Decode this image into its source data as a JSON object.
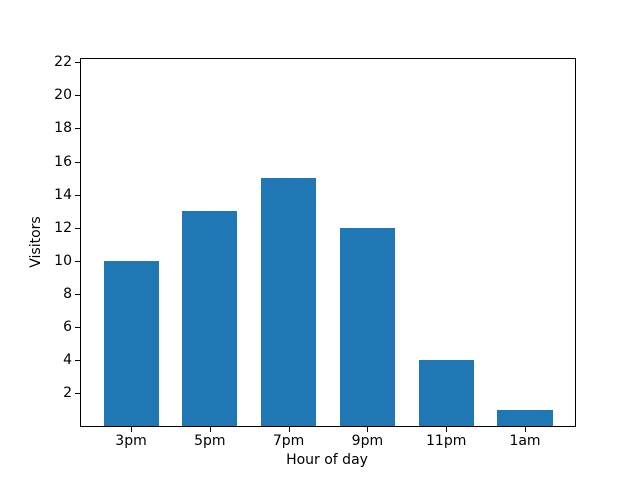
{
  "figure": {
    "background": "#ffffff",
    "spine_color": "#000000",
    "text_color": "#000000"
  },
  "chart_data": {
    "type": "bar",
    "title": "",
    "xlabel": "Hour of day",
    "ylabel": "Visitors",
    "categories": [
      "3pm",
      "5pm",
      "7pm",
      "9pm",
      "11pm",
      "1am"
    ],
    "values": [
      10,
      13,
      15,
      12,
      4,
      1
    ],
    "bar_color": "#1f77b4",
    "bar_width": 0.7,
    "xlim": [
      -0.635,
      5.635
    ],
    "ylim": [
      0,
      22.2
    ],
    "yticks": [
      2,
      4,
      6,
      8,
      10,
      12,
      14,
      16,
      18,
      20,
      22
    ],
    "grid": false,
    "legend": null
  }
}
